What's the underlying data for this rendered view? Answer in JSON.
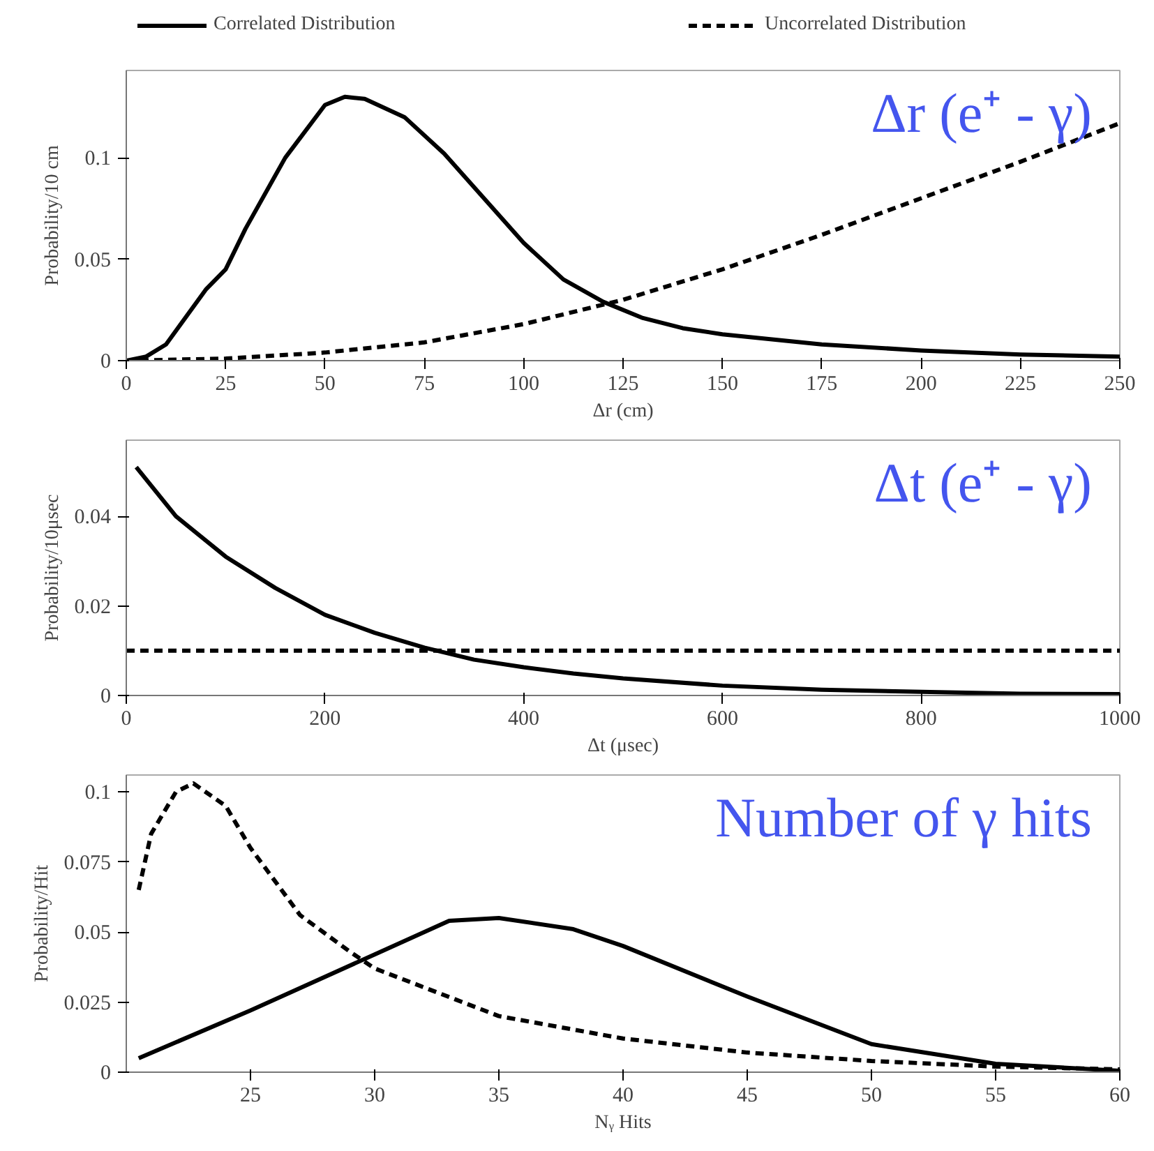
{
  "chart_data": [
    {
      "type": "line",
      "xlabel": "Δr (cm)",
      "ylabel": "Probability/10 cm",
      "annotations": [
        "Δr (e⁺ - γ)"
      ],
      "xlim": [
        0,
        250
      ],
      "ylim": [
        0,
        0.143
      ],
      "xticks": [
        0,
        25,
        50,
        75,
        100,
        125,
        150,
        175,
        200,
        225,
        250
      ],
      "yticks": [
        0,
        0.05,
        0.1
      ],
      "grid": false,
      "legend": "top",
      "marker": "none",
      "series": [
        {
          "name": "Correlated Distribution",
          "color": "#000000",
          "line_style": "solid",
          "x": [
            0,
            5,
            10,
            20,
            25,
            30,
            40,
            50,
            55,
            60,
            70,
            80,
            90,
            100,
            110,
            120,
            130,
            140,
            150,
            175,
            200,
            225,
            250
          ],
          "values": [
            0,
            0.002,
            0.008,
            0.035,
            0.045,
            0.065,
            0.1,
            0.126,
            0.13,
            0.129,
            0.12,
            0.102,
            0.08,
            0.058,
            0.04,
            0.029,
            0.021,
            0.016,
            0.013,
            0.008,
            0.005,
            0.003,
            0.002
          ]
        },
        {
          "name": "Uncorrelated Distribution",
          "color": "#000000",
          "line_style": "dashed",
          "x": [
            0,
            25,
            50,
            75,
            100,
            125,
            150,
            175,
            200,
            225,
            250
          ],
          "values": [
            0,
            0.001,
            0.004,
            0.009,
            0.018,
            0.03,
            0.045,
            0.062,
            0.08,
            0.098,
            0.117
          ]
        }
      ]
    },
    {
      "type": "line",
      "xlabel": "Δt (μsec)",
      "ylabel": "Probability/10μsec",
      "annotations": [
        "Δt (e⁺ - γ)"
      ],
      "xlim": [
        0,
        1000
      ],
      "ylim": [
        0,
        0.057
      ],
      "xticks": [
        0,
        200,
        400,
        600,
        800,
        1000
      ],
      "yticks": [
        0,
        0.02,
        0.04
      ],
      "grid": false,
      "marker": "none",
      "series": [
        {
          "color": "#000000",
          "line_style": "solid",
          "x": [
            10,
            50,
            100,
            150,
            200,
            250,
            300,
            350,
            400,
            450,
            500,
            600,
            700,
            800,
            900,
            1000
          ],
          "values": [
            0.051,
            0.04,
            0.031,
            0.024,
            0.018,
            0.014,
            0.0107,
            0.008,
            0.0063,
            0.0049,
            0.0038,
            0.0022,
            0.0013,
            0.0008,
            0.0004,
            0.0003
          ]
        },
        {
          "color": "#000000",
          "line_style": "dashed",
          "x": [
            0,
            1000
          ],
          "values": [
            0.01,
            0.01
          ]
        }
      ]
    },
    {
      "type": "line",
      "xlabel": "Nᵧ Hits",
      "ylabel": "Probability/Hit",
      "annotations": [
        "Number of γ hits"
      ],
      "xlim": [
        20,
        60
      ],
      "ylim": [
        0,
        0.106
      ],
      "xticks": [
        25,
        30,
        35,
        40,
        45,
        50,
        55,
        60
      ],
      "yticks": [
        0,
        0.025,
        0.05,
        0.075,
        0.1
      ],
      "grid": false,
      "marker": "none",
      "series": [
        {
          "color": "#000000",
          "line_style": "solid",
          "x": [
            20.5,
            25,
            30,
            33,
            35,
            38,
            40,
            45,
            50,
            55,
            60
          ],
          "values": [
            0.005,
            0.022,
            0.042,
            0.054,
            0.055,
            0.051,
            0.045,
            0.027,
            0.01,
            0.003,
            0.0005
          ]
        },
        {
          "color": "#000000",
          "line_style": "dashed",
          "x": [
            20.5,
            21,
            22,
            22.7,
            24,
            25,
            27,
            29,
            30,
            35,
            40,
            45,
            50,
            55,
            60
          ],
          "values": [
            0.065,
            0.085,
            0.1,
            0.103,
            0.095,
            0.08,
            0.056,
            0.043,
            0.037,
            0.02,
            0.012,
            0.007,
            0.004,
            0.002,
            0.001
          ]
        }
      ]
    }
  ]
}
